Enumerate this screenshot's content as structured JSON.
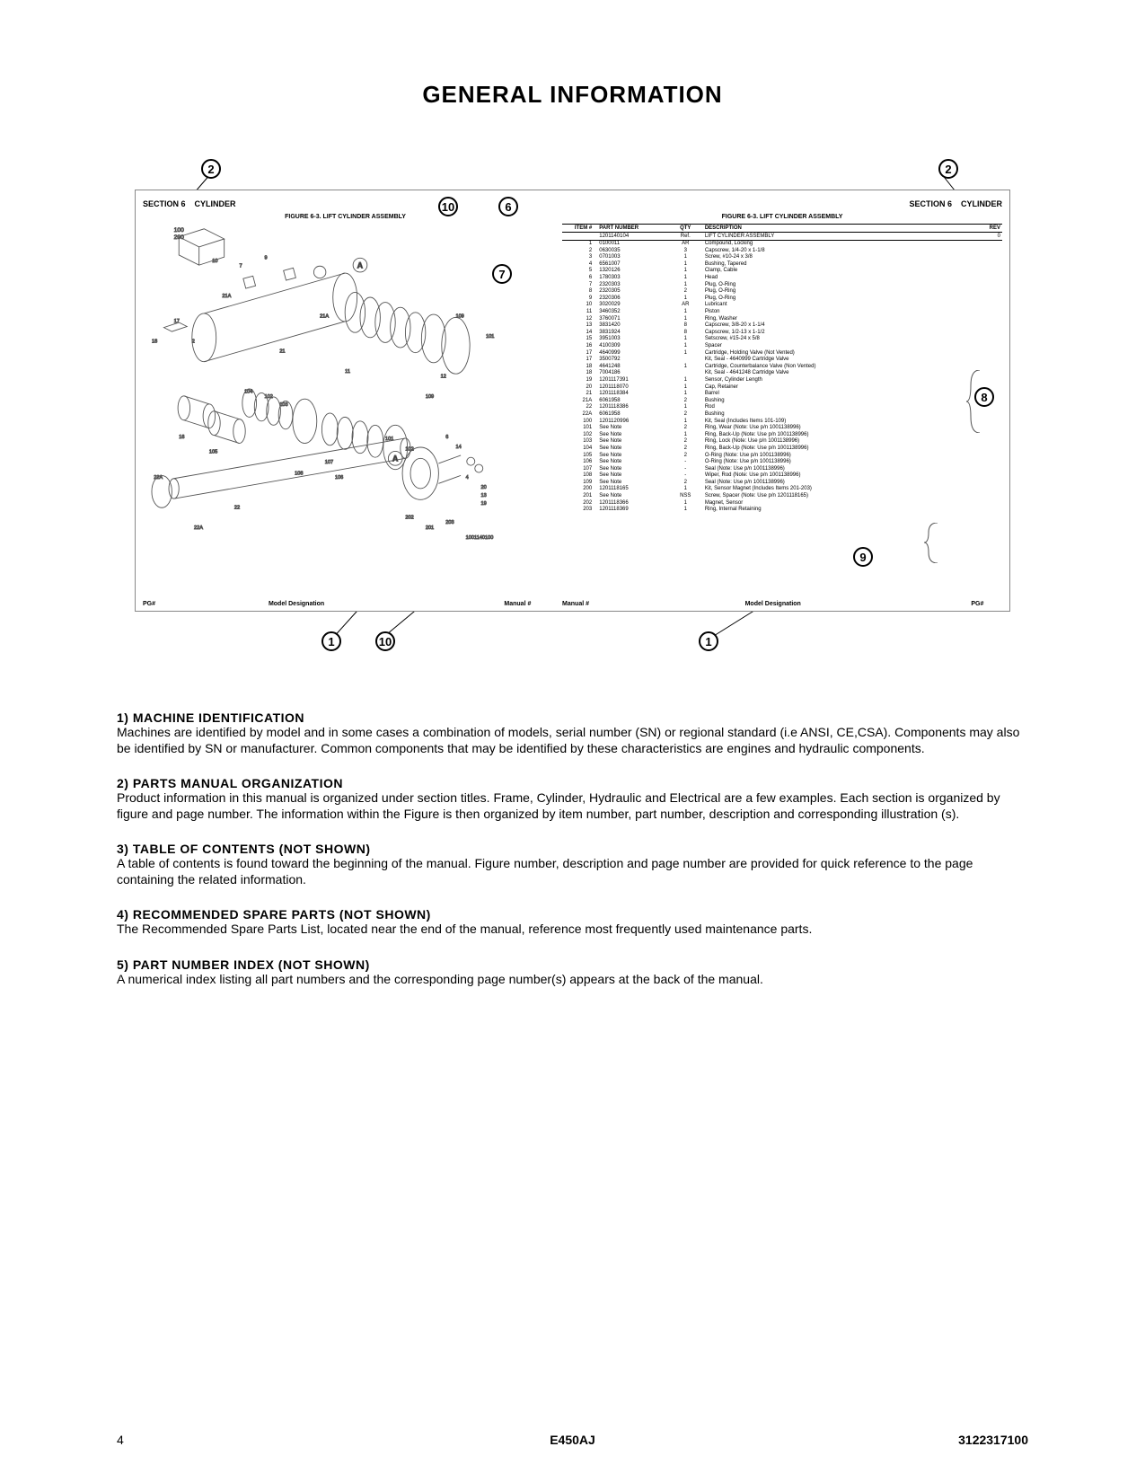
{
  "title": "GENERAL INFORMATION",
  "diagram": {
    "left_section_label": "SECTION 6",
    "left_section_name": "CYLINDER",
    "right_section_label": "SECTION 6",
    "right_section_name": "CYLINDER",
    "figure_title_left": "FIGURE 6-3. LIFT CYLINDER ASSEMBLY",
    "figure_title_right": "FIGURE 6-3. LIFT CYLINDER ASSEMBLY",
    "left_footer_pg": "PG#",
    "left_footer_model": "Model Designation",
    "left_footer_manual": "Manual #",
    "right_footer_manual": "Manual #",
    "right_footer_model": "Model Designation",
    "right_footer_pg": "PG#",
    "table_headers": {
      "item": "ITEM #",
      "pn": "PART NUMBER",
      "qty": "QTY",
      "desc": "DESCRIPTION",
      "rev": "REV"
    },
    "assembly_row": {
      "pn": "1201140104",
      "qty": "Ref.",
      "desc": "LIFT CYLINDER ASSEMBLY",
      "rev": "0"
    },
    "parts": [
      {
        "item": "1",
        "pn": "0100011",
        "qty": "AR",
        "desc": "Compound, Locking"
      },
      {
        "item": "2",
        "pn": "0630035",
        "qty": "3",
        "desc": "Capscrew, 1/4-20 x 1-1/8"
      },
      {
        "item": "3",
        "pn": "0701003",
        "qty": "1",
        "desc": "Screw, #10-24 x 3/8"
      },
      {
        "item": "4",
        "pn": "6561007",
        "qty": "1",
        "desc": "Bushing, Tapered"
      },
      {
        "item": "5",
        "pn": "1320126",
        "qty": "1",
        "desc": "Clamp, Cable"
      },
      {
        "item": "6",
        "pn": "1780303",
        "qty": "1",
        "desc": "Head"
      },
      {
        "item": "7",
        "pn": "2320303",
        "qty": "1",
        "desc": "Plug, O-Ring"
      },
      {
        "item": "8",
        "pn": "2320305",
        "qty": "2",
        "desc": "Plug, O-Ring"
      },
      {
        "item": "9",
        "pn": "2320306",
        "qty": "1",
        "desc": "Plug, O-Ring"
      },
      {
        "item": "10",
        "pn": "3020029",
        "qty": "AR",
        "desc": "Lubricant"
      },
      {
        "item": "11",
        "pn": "3460352",
        "qty": "1",
        "desc": "Piston"
      },
      {
        "item": "12",
        "pn": "3760071",
        "qty": "1",
        "desc": "Ring, Washer"
      },
      {
        "item": "13",
        "pn": "3831420",
        "qty": "8",
        "desc": "Capscrew, 3/8-20 x 1-1/4"
      },
      {
        "item": "14",
        "pn": "3831924",
        "qty": "8",
        "desc": "Capscrew, 1/2-13 x 1-1/2"
      },
      {
        "item": "15",
        "pn": "3951003",
        "qty": "1",
        "desc": "Setscrew, #15-24 x 5/8"
      },
      {
        "item": "16",
        "pn": "4100309",
        "qty": "1",
        "desc": "Spacer"
      },
      {
        "item": "17",
        "pn": "4640999",
        "qty": "1",
        "desc": "Cartridge, Holding Valve (Not Vented)"
      },
      {
        "item": "17",
        "pn": "3500792",
        "qty": "",
        "desc": "Kit, Seal - 4640999 Cartridge Valve"
      },
      {
        "item": "18",
        "pn": "4641248",
        "qty": "1",
        "desc": "Cartridge, Counterbalance Valve (Non Vented)"
      },
      {
        "item": "18",
        "pn": "7004186",
        "qty": "",
        "desc": "Kit, Seal - 4641248 Cartridge Valve"
      },
      {
        "item": "19",
        "pn": "1201117391",
        "qty": "1",
        "desc": "Sensor, Cylinder Length"
      },
      {
        "item": "20",
        "pn": "1201118070",
        "qty": "1",
        "desc": "Cap, Retainer"
      },
      {
        "item": "21",
        "pn": "1201118384",
        "qty": "1",
        "desc": "Barrel"
      },
      {
        "item": "21A",
        "pn": "6061958",
        "qty": "2",
        "desc": "Bushing"
      },
      {
        "item": "22",
        "pn": "1201118386",
        "qty": "1",
        "desc": "Rod"
      },
      {
        "item": "22A",
        "pn": "6061958",
        "qty": "2",
        "desc": "Bushing"
      },
      {
        "item": "100",
        "pn": "1201120996",
        "qty": "1",
        "desc": "Kit, Seal (Includes Items 101-109)"
      },
      {
        "item": "101",
        "pn": "See Note",
        "qty": "2",
        "desc": "Ring, Wear (Note: Use p/n 1001138996)"
      },
      {
        "item": "102",
        "pn": "See Note",
        "qty": "1",
        "desc": "Ring, Back-Up (Note: Use p/n 1001138996)"
      },
      {
        "item": "103",
        "pn": "See Note",
        "qty": "2",
        "desc": "Ring, Lock (Note: Use p/n 1001138996)"
      },
      {
        "item": "104",
        "pn": "See Note",
        "qty": "2",
        "desc": "Ring, Back-Up (Note: Use p/n 1001138996)"
      },
      {
        "item": "105",
        "pn": "See Note",
        "qty": "2",
        "desc": "O-Ring (Note: Use p/n 1001138996)"
      },
      {
        "item": "106",
        "pn": "See Note",
        "qty": "-",
        "desc": "O-Ring (Note: Use p/n 1001138996)"
      },
      {
        "item": "107",
        "pn": "See Note",
        "qty": "-",
        "desc": "Seal (Note: Use p/n 1001138996)"
      },
      {
        "item": "108",
        "pn": "See Note",
        "qty": "-",
        "desc": "Wiper, Rod (Note: Use p/n 1001138996)"
      },
      {
        "item": "109",
        "pn": "See Note",
        "qty": "2",
        "desc": "Seal (Note: Use p/n 1001138996)"
      },
      {
        "item": "200",
        "pn": "1201118165",
        "qty": "1",
        "desc": "Kit, Sensor Magnet (Includes Items 201-203)"
      },
      {
        "item": "201",
        "pn": "See Note",
        "qty": "NSS",
        "desc": "Screw, Spacer (Note: Use p/n 1201118165)"
      },
      {
        "item": "202",
        "pn": "1201118366",
        "qty": "1",
        "desc": "Magnet, Sensor"
      },
      {
        "item": "203",
        "pn": "1201118369",
        "qty": "1",
        "desc": "Ring, Internal Retaining"
      }
    ]
  },
  "callouts": {
    "c1": "1",
    "c2": "2",
    "c6": "6",
    "c7": "7",
    "c8": "8",
    "c9": "9",
    "c10": "10"
  },
  "sections": [
    {
      "heading": "1) MACHINE IDENTIFICATION",
      "body": "Machines are identified by model and in some cases a combination of models, serial number (SN) or regional standard (i.e ANSI, CE,CSA). Components may also be identified by SN or manufacturer. Common components that may be identified by these characteristics are engines and hydraulic components."
    },
    {
      "heading": "2) PARTS MANUAL ORGANIZATION",
      "body": "Product information in this manual is organized under section titles. Frame, Cylinder, Hydraulic and Electrical are a few examples. Each section is organized by figure and page number. The information within the Figure is then organized by item number, part number, description and corresponding illustration (s)."
    },
    {
      "heading": "3) TABLE OF CONTENTS (NOT SHOWN)",
      "body": "A table of contents is found toward the beginning of the manual. Figure number, description and page number are provided for quick reference to the page containing the related information."
    },
    {
      "heading": "4) RECOMMENDED SPARE PARTS (NOT SHOWN)",
      "body": "The Recommended Spare Parts List, located near the end of the manual, reference most frequently used maintenance parts."
    },
    {
      "heading": "5) PART NUMBER INDEX (NOT SHOWN)",
      "body": "A numerical index listing all part numbers and the corresponding page number(s) appears at the back of the manual."
    }
  ],
  "footer": {
    "page_number": "4",
    "model": "E450AJ",
    "doc_number": "3122317100"
  }
}
